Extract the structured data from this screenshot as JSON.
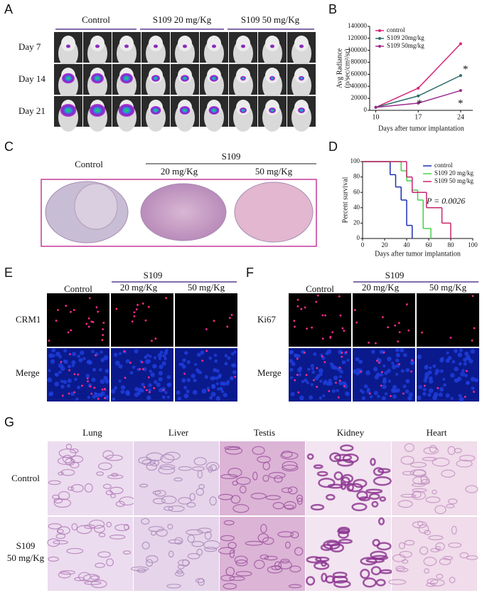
{
  "panel_letters": [
    "A",
    "B",
    "C",
    "D",
    "E",
    "F",
    "G"
  ],
  "panels": {
    "A": {
      "groups": [
        "Control",
        "S109 20 mg/Kg",
        "S109 50 mg/Kg"
      ],
      "rows": [
        "Day  7",
        "Day 14",
        "Day 21"
      ]
    },
    "C": {
      "control": "Control",
      "treatment": "S109",
      "doses": [
        "20 mg/Kg",
        "50 mg/Kg"
      ]
    },
    "E": {
      "control": "Control",
      "treatment": "S109",
      "doses": [
        "20 mg/Kg",
        "50 mg/Kg"
      ],
      "rows": [
        "CRM1",
        "Merge"
      ]
    },
    "F": {
      "control": "Control",
      "treatment": "S109",
      "doses": [
        "20 mg/Kg",
        "50 mg/Kg"
      ],
      "rows": [
        "Ki67",
        "Merge"
      ]
    },
    "G": {
      "columns": [
        "Lung",
        "Liver",
        "Testis",
        "Kidney",
        "Heart"
      ],
      "rows": [
        [
          "Control"
        ],
        [
          "S109",
          "50 mg/Kg"
        ]
      ]
    }
  },
  "chart_data": [
    {
      "type": "line",
      "ylabel": [
        "Avg Radiance",
        "(p/sec/cm²/sr)"
      ],
      "xlabel": "Days after tumor implantation",
      "x": [
        10,
        17,
        24
      ],
      "xlim": [
        9,
        26
      ],
      "xticks": [
        10,
        17,
        24
      ],
      "ylim": [
        0,
        140000
      ],
      "yticks": [
        0,
        20000,
        40000,
        60000,
        80000,
        100000,
        120000,
        140000
      ],
      "legend": "top-left",
      "series": [
        {
          "name": "control",
          "color": "#d6287a",
          "values": [
            5000,
            37000,
            111000
          ]
        },
        {
          "name": "S109 20mg/kg",
          "color": "#2e6e6a",
          "values": [
            5000,
            24000,
            58000
          ]
        },
        {
          "name": "S109 50mg/kg",
          "color": "#9b2d8f",
          "values": [
            5000,
            12000,
            33000
          ]
        }
      ],
      "annotations": [
        "*",
        "*",
        "*"
      ]
    },
    {
      "type": "step",
      "ylabel": "Percent survival",
      "xlabel": "Days after tumor implantation",
      "xlim": [
        0,
        100
      ],
      "xticks": [
        0,
        20,
        40,
        60,
        80,
        100
      ],
      "ylim": [
        0,
        100
      ],
      "yticks": [
        0,
        20,
        40,
        60,
        80,
        100
      ],
      "legend": "top-right",
      "series": [
        {
          "name": "control",
          "color": "#1a2fb5",
          "x": [
            0,
            25,
            30,
            35,
            40,
            45
          ],
          "values": [
            100,
            83,
            67,
            50,
            17,
            0
          ]
        },
        {
          "name": "S109 20 mg/kg",
          "color": "#46d24a",
          "x": [
            0,
            35,
            40,
            45,
            50,
            55,
            62
          ],
          "values": [
            100,
            88,
            75,
            63,
            50,
            13,
            0
          ]
        },
        {
          "name": "S109 50 mg/kg",
          "color": "#c8246a",
          "x": [
            0,
            40,
            45,
            58,
            72,
            80
          ],
          "values": [
            100,
            80,
            60,
            40,
            20,
            0
          ]
        }
      ],
      "annotations": [
        "P = 0.0026"
      ]
    }
  ]
}
